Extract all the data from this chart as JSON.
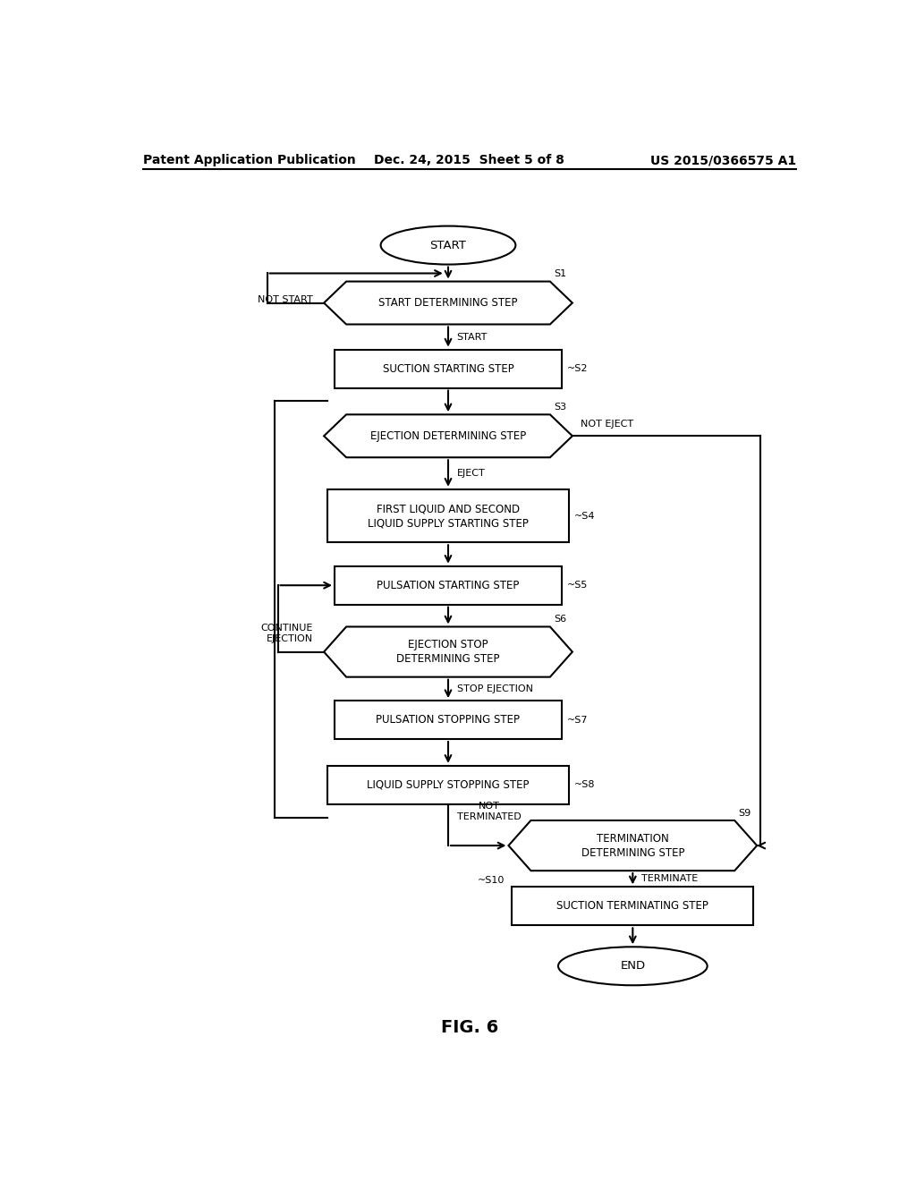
{
  "title_left": "Patent Application Publication",
  "title_center": "Dec. 24, 2015  Sheet 5 of 8",
  "title_right": "US 2015/0366575 A1",
  "fig_label": "FIG. 6",
  "background": "#ffffff",
  "text_color": "#000000"
}
